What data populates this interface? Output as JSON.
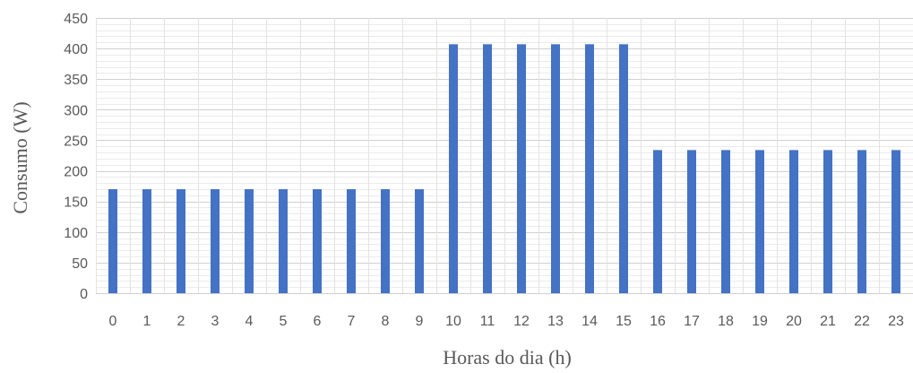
{
  "chart_data": {
    "type": "bar",
    "title": "",
    "xlabel": "Horas do dia (h)",
    "ylabel": "Consumo (W)",
    "categories": [
      "0",
      "1",
      "2",
      "3",
      "4",
      "5",
      "6",
      "7",
      "8",
      "9",
      "10",
      "11",
      "12",
      "13",
      "14",
      "15",
      "16",
      "17",
      "18",
      "19",
      "20",
      "21",
      "22",
      "23"
    ],
    "values": [
      170,
      170,
      170,
      170,
      170,
      170,
      170,
      170,
      170,
      170,
      407,
      407,
      407,
      407,
      407,
      407,
      234,
      234,
      234,
      234,
      234,
      234,
      234,
      234
    ],
    "ylim": [
      0,
      450
    ],
    "yticks": [
      "0",
      "50",
      "100",
      "150",
      "200",
      "250",
      "300",
      "350",
      "400",
      "450"
    ],
    "grid": true,
    "minor_grid": true,
    "legend": "none",
    "bar_color": "#4472C4",
    "grid_color": "#D9D9D9"
  }
}
